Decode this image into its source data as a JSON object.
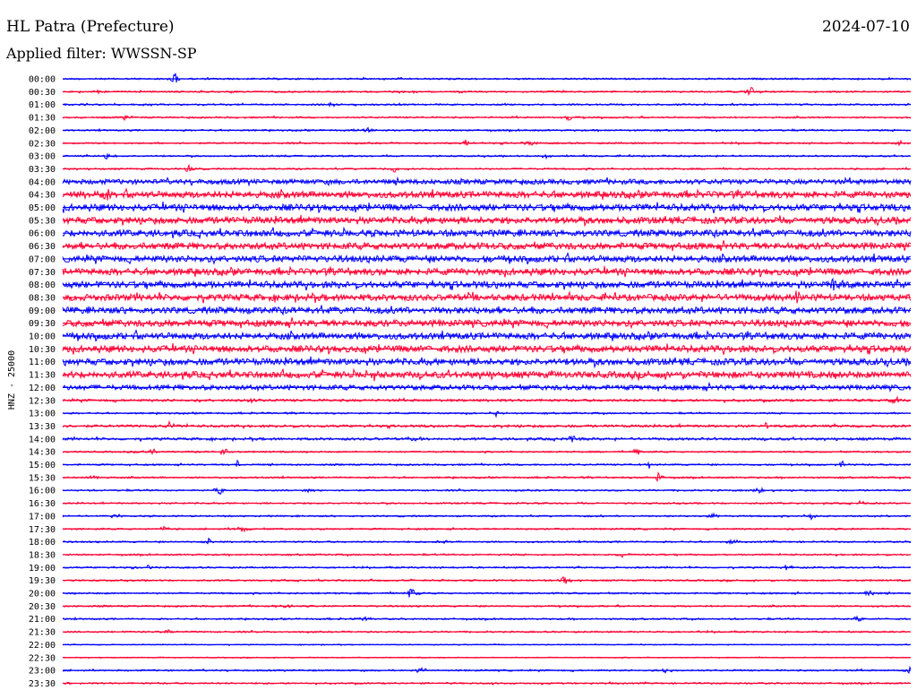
{
  "header": {
    "station": "HL Patra (Prefecture)",
    "date": "2024-07-10",
    "filter": "Applied filter: WWSSN-SP"
  },
  "colors": {
    "even": "#0000ff",
    "odd": "#ff0033"
  },
  "chart_data": {
    "type": "line",
    "title": "HL Patra (Prefecture)",
    "ylabel": "HNZ - 25000",
    "xlabel": "",
    "rows": [
      {
        "label": "00:00",
        "amp": 1,
        "events": [
          [
            195,
            9
          ]
        ]
      },
      {
        "label": "00:30",
        "amp": 1,
        "events": [
          [
            840,
            7
          ],
          [
            110,
            3
          ]
        ]
      },
      {
        "label": "01:00",
        "amp": 1,
        "events": [
          [
            370,
            3
          ]
        ]
      },
      {
        "label": "01:30",
        "amp": 1,
        "events": [
          [
            140,
            4
          ],
          [
            635,
            4
          ]
        ]
      },
      {
        "label": "02:00",
        "amp": 1,
        "events": [
          [
            410,
            3
          ]
        ]
      },
      {
        "label": "02:30",
        "amp": 1,
        "events": [
          [
            520,
            4
          ],
          [
            590,
            4
          ],
          [
            1005,
            4
          ]
        ]
      },
      {
        "label": "03:00",
        "amp": 1,
        "events": [
          [
            120,
            5
          ],
          [
            610,
            3
          ]
        ]
      },
      {
        "label": "03:30",
        "amp": 1,
        "events": [
          [
            210,
            4
          ],
          [
            440,
            4
          ]
        ]
      },
      {
        "label": "04:00",
        "amp": 3,
        "events": []
      },
      {
        "label": "04:30",
        "amp": 4,
        "events": [
          [
            120,
            6
          ]
        ]
      },
      {
        "label": "05:00",
        "amp": 4,
        "events": []
      },
      {
        "label": "05:30",
        "amp": 4,
        "events": []
      },
      {
        "label": "06:00",
        "amp": 4,
        "events": []
      },
      {
        "label": "06:30",
        "amp": 4,
        "events": []
      },
      {
        "label": "07:00",
        "amp": 4,
        "events": []
      },
      {
        "label": "07:30",
        "amp": 4,
        "events": []
      },
      {
        "label": "08:00",
        "amp": 4,
        "events": [
          [
            930,
            10
          ]
        ]
      },
      {
        "label": "08:30",
        "amp": 4,
        "events": [
          [
            890,
            6
          ]
        ]
      },
      {
        "label": "09:00",
        "amp": 4,
        "events": []
      },
      {
        "label": "09:30",
        "amp": 4,
        "events": []
      },
      {
        "label": "10:00",
        "amp": 4,
        "events": []
      },
      {
        "label": "10:30",
        "amp": 4,
        "events": []
      },
      {
        "label": "11:00",
        "amp": 4,
        "events": []
      },
      {
        "label": "11:30",
        "amp": 4,
        "events": [
          [
            415,
            7
          ]
        ]
      },
      {
        "label": "12:00",
        "amp": 3,
        "events": [
          [
            165,
            4
          ]
        ]
      },
      {
        "label": "12:30",
        "amp": 1.5,
        "events": [
          [
            280,
            4
          ],
          [
            1000,
            5
          ]
        ]
      },
      {
        "label": "13:00",
        "amp": 1,
        "events": [
          [
            555,
            4
          ]
        ]
      },
      {
        "label": "13:30",
        "amp": 1.5,
        "events": [
          [
            190,
            5
          ],
          [
            855,
            4
          ]
        ]
      },
      {
        "label": "14:00",
        "amp": 1.5,
        "events": [
          [
            465,
            4
          ],
          [
            640,
            4
          ]
        ]
      },
      {
        "label": "14:30",
        "amp": 1,
        "events": [
          [
            170,
            5
          ],
          [
            250,
            6
          ],
          [
            710,
            5
          ]
        ]
      },
      {
        "label": "15:00",
        "amp": 1,
        "events": [
          [
            265,
            4
          ],
          [
            725,
            4
          ],
          [
            940,
            4
          ]
        ]
      },
      {
        "label": "15:30",
        "amp": 1,
        "events": [
          [
            105,
            5
          ],
          [
            735,
            6
          ]
        ]
      },
      {
        "label": "16:00",
        "amp": 1,
        "events": [
          [
            245,
            7
          ],
          [
            345,
            4
          ],
          [
            850,
            5
          ]
        ]
      },
      {
        "label": "16:30",
        "amp": 1,
        "events": [
          [
            960,
            3
          ]
        ]
      },
      {
        "label": "17:00",
        "amp": 1,
        "events": [
          [
            130,
            4
          ],
          [
            795,
            4
          ],
          [
            905,
            4
          ]
        ]
      },
      {
        "label": "17:30",
        "amp": 1,
        "events": [
          [
            183,
            4
          ],
          [
            270,
            5
          ]
        ]
      },
      {
        "label": "18:00",
        "amp": 1,
        "events": [
          [
            233,
            4
          ],
          [
            495,
            4
          ],
          [
            818,
            5
          ]
        ]
      },
      {
        "label": "18:30",
        "amp": 1,
        "events": [
          [
            695,
            4
          ]
        ]
      },
      {
        "label": "19:00",
        "amp": 1,
        "events": [
          [
            165,
            4
          ],
          [
            880,
            5
          ]
        ]
      },
      {
        "label": "19:30",
        "amp": 1,
        "events": [
          [
            630,
            6
          ]
        ]
      },
      {
        "label": "20:00",
        "amp": 1,
        "events": [
          [
            460,
            8
          ],
          [
            970,
            5
          ]
        ]
      },
      {
        "label": "20:30",
        "amp": 1,
        "events": [
          [
            320,
            5
          ]
        ]
      },
      {
        "label": "21:00",
        "amp": 1,
        "events": [
          [
            405,
            4
          ],
          [
            958,
            5
          ]
        ]
      },
      {
        "label": "21:30",
        "amp": 1,
        "events": [
          [
            190,
            4
          ]
        ]
      },
      {
        "label": "22:00",
        "amp": 0.6,
        "events": []
      },
      {
        "label": "22:30",
        "amp": 0.6,
        "events": []
      },
      {
        "label": "23:00",
        "amp": 1,
        "events": [
          [
            470,
            4
          ],
          [
            745,
            4
          ],
          [
            1015,
            4
          ]
        ]
      },
      {
        "label": "23:30",
        "amp": 1,
        "events": [
          [
            78,
            3
          ]
        ]
      }
    ]
  }
}
